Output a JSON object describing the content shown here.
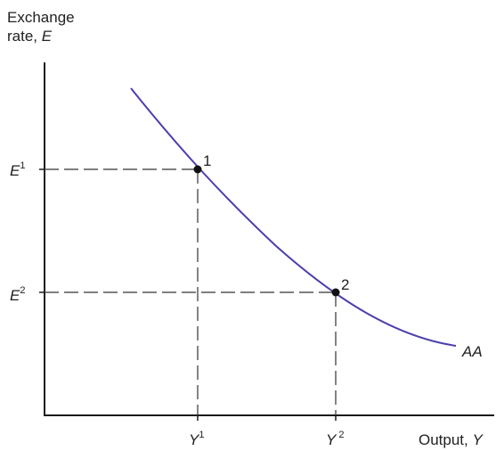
{
  "y_axis": {
    "label_word": "Exchange",
    "label_prefix": "rate, ",
    "label_var": "E"
  },
  "x_axis": {
    "label_prefix": "Output, ",
    "label_var": "Y"
  },
  "curve": {
    "name": "AA",
    "color": "#4b3fae"
  },
  "points": [
    {
      "label": "1",
      "e_var": "E",
      "e_sup": "1",
      "y_var": "Y",
      "y_sup": "1"
    },
    {
      "label": "2",
      "e_var": "E",
      "e_sup": "2",
      "y_var": "Y",
      "y_sup": "2"
    }
  ]
}
